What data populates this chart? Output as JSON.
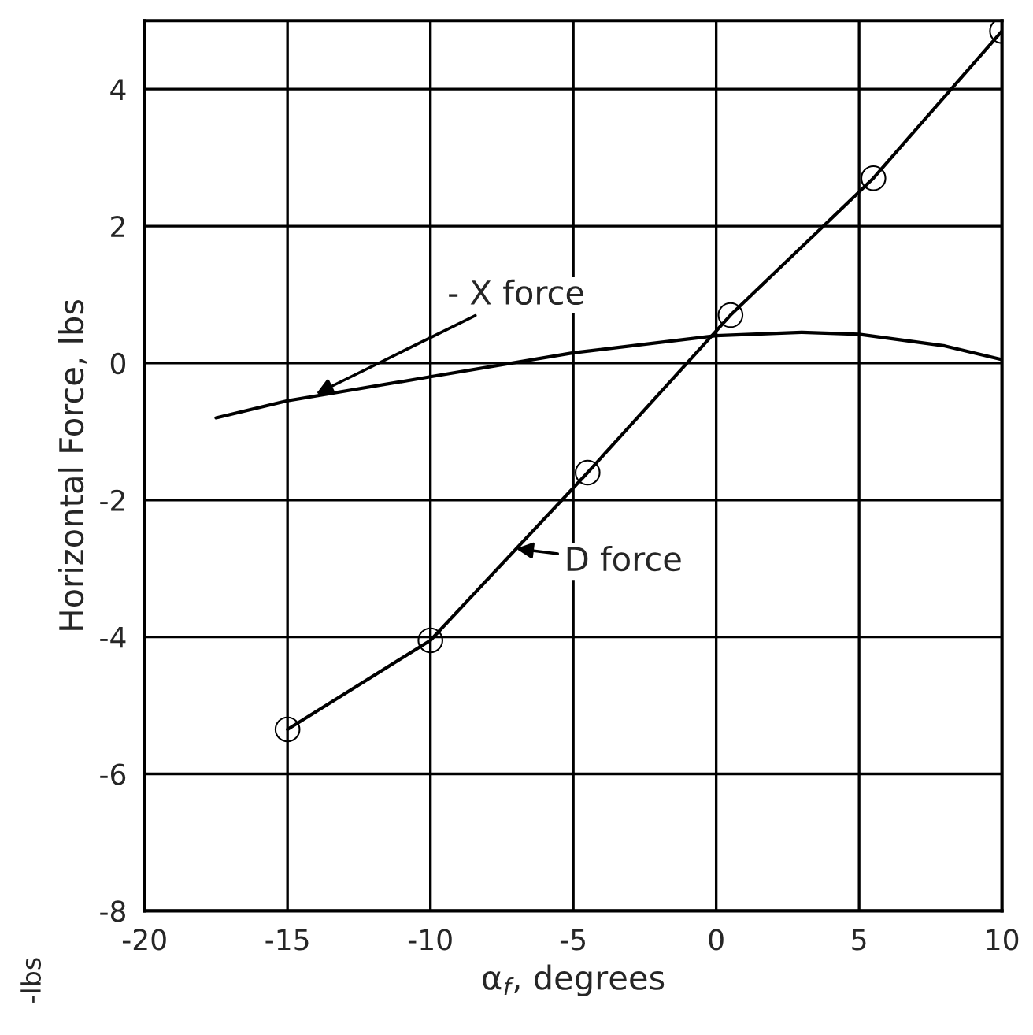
{
  "chart_data": {
    "type": "line",
    "xlabel": "α$_{f}$, degrees",
    "ylabel": "Horizontal Force, lbs",
    "xlim": [
      -20,
      10
    ],
    "ylim": [
      -8,
      5
    ],
    "xticks": [
      -20,
      -15,
      -10,
      -5,
      0,
      5,
      10
    ],
    "yticks": [
      -8,
      -6,
      -4,
      -2,
      0,
      2,
      4
    ],
    "grid": true,
    "legend": false,
    "series": [
      {
        "color": "#000000",
        "marker": "circle",
        "x": [
          -15,
          -10,
          -4.5,
          0.5,
          5.5,
          10
        ],
        "values": [
          -5.35,
          -4.05,
          -1.6,
          0.7,
          2.7,
          4.85
        ]
      },
      {
        "color": "#000000",
        "marker": "none",
        "x": [
          -17.5,
          -15,
          -10,
          -5,
          0,
          3,
          5,
          8,
          10
        ],
        "values": [
          -0.8,
          -0.55,
          -0.2,
          0.15,
          0.4,
          0.45,
          0.42,
          0.25,
          0.05
        ]
      }
    ],
    "annotations": [
      {
        "text": "- X force",
        "x": -14,
        "y": -0.45
      },
      {
        "text": "D force",
        "x": -7,
        "y": -2.71
      },
      "-lbs"
    ]
  }
}
